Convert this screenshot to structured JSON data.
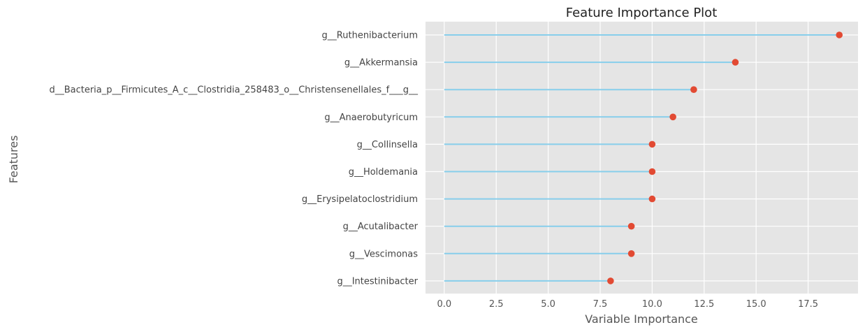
{
  "chart_data": {
    "type": "lollipop",
    "title": "Feature Importance Plot",
    "xlabel": "Variable Importance",
    "ylabel": "Features",
    "xlim": [
      -0.9,
      19.9
    ],
    "xticks": [
      0.0,
      2.5,
      5.0,
      7.5,
      10.0,
      12.5,
      15.0,
      17.5
    ],
    "xtick_labels": [
      "0.0",
      "2.5",
      "5.0",
      "7.5",
      "10.0",
      "12.5",
      "15.0",
      "17.5"
    ],
    "grid": true,
    "categories": [
      "g__Ruthenibacterium",
      "g__Akkermansia",
      "d__Bacteria_p__Firmicutes_A_c__Clostridia_258483_o__Christensenellales_f___g__",
      "g__Anaerobutyricum",
      "g__Collinsella",
      "g__Holdemania",
      "g__Erysipelatoclostridium",
      "g__Acutalibacter",
      "g__Vescimonas",
      "g__Intestinibacter"
    ],
    "values": [
      19,
      14,
      12,
      11,
      10,
      10,
      10,
      9,
      9,
      8
    ],
    "colors": {
      "stem": "#87ceeb",
      "marker": "#e24a33",
      "background": "#e5e5e5",
      "grid": "#ffffff"
    }
  }
}
